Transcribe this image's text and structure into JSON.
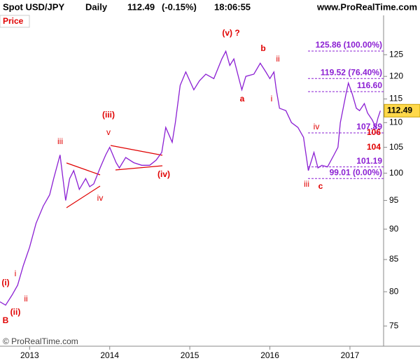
{
  "chart_data": {
    "type": "line",
    "header": {
      "symbol": "Spot USD/JPY",
      "period": "Daily",
      "last": 112.49,
      "change": "(-0.15%)",
      "time": "18:06:55",
      "site": "www.ProRealTime.com"
    },
    "panel_label": "Price",
    "copyright": "© ProRealTime.com",
    "log_scale": true,
    "grid": false,
    "xlim": [
      2012.63,
      2017.42
    ],
    "xticks": [
      2013,
      2014,
      2015,
      2016,
      2017
    ],
    "ylim": [
      72.2,
      134.6
    ],
    "yticks": [
      75,
      80,
      85,
      90,
      95,
      100,
      105,
      110,
      115,
      120,
      125
    ],
    "series": [
      {
        "name": "USD/JPY",
        "color": "#8b1fd3",
        "x": [
          2012.63,
          2012.7,
          2012.78,
          2012.85,
          2012.92,
          2013.0,
          2013.08,
          2013.17,
          2013.25,
          2013.3,
          2013.38,
          2013.45,
          2013.5,
          2013.55,
          2013.62,
          2013.7,
          2013.75,
          2013.8,
          2013.88,
          2013.95,
          2014.0,
          2014.08,
          2014.12,
          2014.2,
          2014.3,
          2014.4,
          2014.5,
          2014.58,
          2014.65,
          2014.7,
          2014.78,
          2014.82,
          2014.88,
          2014.95,
          2015.0,
          2015.05,
          2015.12,
          2015.2,
          2015.3,
          2015.4,
          2015.45,
          2015.5,
          2015.55,
          2015.62,
          2015.65,
          2015.7,
          2015.8,
          2015.88,
          2015.95,
          2016.0,
          2016.05,
          2016.08,
          2016.12,
          2016.2,
          2016.27,
          2016.35,
          2016.42,
          2016.48,
          2016.55,
          2016.6,
          2016.65,
          2016.72,
          2016.8,
          2016.85,
          2016.88,
          2016.95,
          2016.98,
          2017.03,
          2017.08,
          2017.12,
          2017.18,
          2017.22,
          2017.28,
          2017.32,
          2017.35,
          2017.38
        ],
        "values": [
          78.5,
          78,
          79.5,
          81,
          84,
          87,
          91,
          94,
          96,
          99,
          103.5,
          95,
          99,
          100.5,
          97,
          99,
          97.5,
          98,
          101,
          103.5,
          105,
          102,
          101,
          103,
          102,
          101.5,
          101.5,
          102.5,
          104,
          109,
          106,
          110,
          118,
          121,
          119,
          117,
          119,
          120.5,
          119.5,
          124,
          125.8,
          122.5,
          124,
          119,
          117,
          120,
          120.5,
          123,
          121,
          119.5,
          121,
          117,
          113,
          112.5,
          110,
          109,
          107,
          100.5,
          104,
          101,
          101.5,
          101.2,
          103.5,
          105,
          110,
          116,
          118.5,
          116,
          113,
          112.5,
          114,
          112,
          110.5,
          109,
          111,
          112.49
        ]
      }
    ],
    "levels": [
      {
        "value": 125.86,
        "label": "125.86 (100.00%)"
      },
      {
        "value": 119.52,
        "label": "119.52 (76.40%)"
      },
      {
        "value": 116.6,
        "label": "116.60"
      },
      {
        "value": 107.89,
        "label": "107.89"
      },
      {
        "value": 101.19,
        "label": "101.19"
      },
      {
        "value": 99.01,
        "label": "99.01 (0.00%)"
      }
    ],
    "annotations": [
      "(v) ?",
      "b",
      "ii",
      "a",
      "i",
      "(iii)",
      "v",
      "iii",
      "iv",
      "(iv)",
      "iv",
      "iii",
      "c",
      "i",
      "(i)",
      "ii",
      "(ii)",
      "B",
      "106",
      "104"
    ]
  }
}
